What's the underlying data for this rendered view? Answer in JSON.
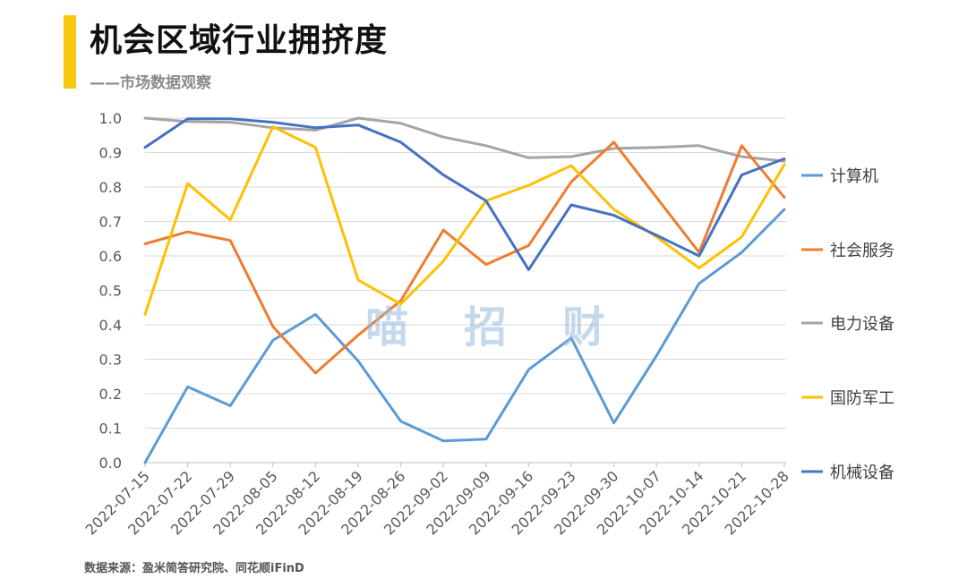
{
  "header": {
    "title": "机会区域行业拥挤度",
    "subtitle": "——市场数据观察"
  },
  "watermark": "喵招财",
  "footer": {
    "source": "数据来源：盈米简答研究院、同花顺iFinD"
  },
  "colors": {
    "accent": "#f9c80e",
    "grid": "#d9d9d9",
    "axis": "#bfbfbf"
  },
  "chart_data": {
    "type": "line",
    "title": "机会区域行业拥挤度",
    "xlabel": "",
    "ylabel": "",
    "ylim": [
      0,
      1
    ],
    "yticks": [
      "0.0",
      "0.1",
      "0.2",
      "0.3",
      "0.4",
      "0.5",
      "0.6",
      "0.7",
      "0.8",
      "0.9",
      "1.0"
    ],
    "grid": true,
    "legend_position": "right",
    "categories": [
      "2022-07-15",
      "2022-07-22",
      "2022-07-29",
      "2022-08-05",
      "2022-08-12",
      "2022-08-19",
      "2022-08-26",
      "2022-09-02",
      "2022-09-09",
      "2022-09-16",
      "2022-09-23",
      "2022-09-30",
      "2022-10-07",
      "2022-10-14",
      "2022-10-21",
      "2022-10-28"
    ],
    "series": [
      {
        "name": "计算机",
        "color": "#5b9bd5",
        "values": [
          0.0,
          0.22,
          0.165,
          0.355,
          0.43,
          0.295,
          0.12,
          0.063,
          0.068,
          0.27,
          0.362,
          0.115,
          0.31,
          0.52,
          0.61,
          0.735
        ]
      },
      {
        "name": "社会服务",
        "color": "#ed7d31",
        "values": [
          0.635,
          0.67,
          0.645,
          0.395,
          0.26,
          0.37,
          0.47,
          0.675,
          0.575,
          0.63,
          0.815,
          0.93,
          0.77,
          0.61,
          0.92,
          0.77
        ]
      },
      {
        "name": "电力设备",
        "color": "#a5a5a5",
        "values": [
          1.0,
          0.99,
          0.988,
          0.972,
          0.965,
          1.0,
          0.985,
          0.945,
          0.92,
          0.885,
          0.888,
          0.912,
          0.915,
          0.92,
          0.888,
          0.875
        ]
      },
      {
        "name": "国防军工",
        "color": "#ffc000",
        "values": [
          0.43,
          0.81,
          0.705,
          0.975,
          0.915,
          0.53,
          0.46,
          0.585,
          0.76,
          0.805,
          0.862,
          0.735,
          0.655,
          0.565,
          0.655,
          0.865
        ]
      },
      {
        "name": "机械设备",
        "color": "#4472c4",
        "values": [
          0.915,
          0.998,
          0.998,
          0.988,
          0.972,
          0.98,
          0.93,
          0.835,
          0.76,
          0.56,
          0.748,
          0.718,
          0.66,
          0.6,
          0.835,
          0.882
        ]
      }
    ]
  }
}
